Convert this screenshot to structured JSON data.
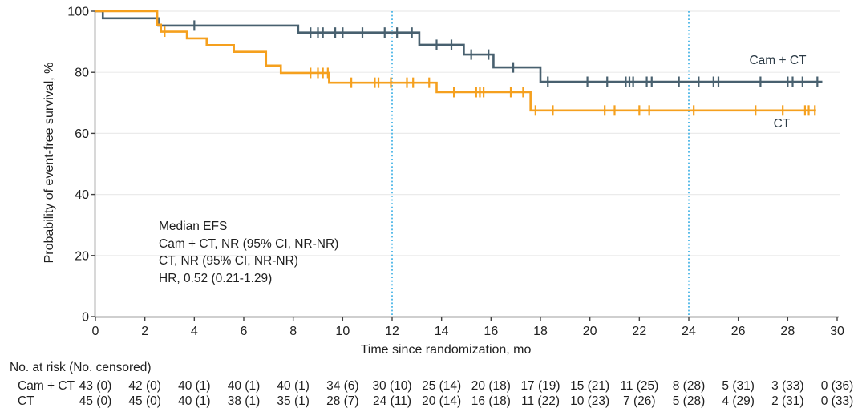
{
  "annotation": {
    "lines": [
      "Median EFS",
      "Cam + CT, NR (95% CI, NR-NR)",
      "CT, NR (95% CI, NR-NR)",
      "HR, 0.52 (0.21-1.29)"
    ]
  },
  "chart_data": {
    "type": "line",
    "subtype": "kaplan-meier-step",
    "xlabel": "Time since randomization, mo",
    "ylabel": "Probability of event-free survival, %",
    "xlim": [
      0,
      30
    ],
    "ylim": [
      0,
      100
    ],
    "x_ticks": [
      0,
      2,
      4,
      6,
      8,
      10,
      12,
      14,
      16,
      18,
      20,
      22,
      24,
      26,
      28,
      30
    ],
    "y_ticks": [
      0,
      20,
      40,
      60,
      80,
      100
    ],
    "grid": "horizontal",
    "colors": {
      "grid": "#ebebeb",
      "axis": "#404040",
      "reference_line": "#3fb1e5",
      "text": "#1f1f1f"
    },
    "reference_lines_x": [
      12,
      24
    ],
    "series": [
      {
        "name": "Cam + CT",
        "color": "#48606f",
        "end_time": 29.4,
        "steps": [
          [
            0,
            100
          ],
          [
            0.3,
            97.7
          ],
          [
            2.55,
            95.3
          ],
          [
            8.2,
            93.0
          ],
          [
            13.1,
            89.0
          ],
          [
            14.9,
            85.8
          ],
          [
            16.1,
            81.6
          ],
          [
            18.0,
            76.9
          ]
        ],
        "censor_marks": [
          [
            4.0,
            95.3
          ],
          [
            8.7,
            93.0
          ],
          [
            9.0,
            93.0
          ],
          [
            9.2,
            93.0
          ],
          [
            9.7,
            93.0
          ],
          [
            10.0,
            93.0
          ],
          [
            10.8,
            93.0
          ],
          [
            11.7,
            93.0
          ],
          [
            12.2,
            93.0
          ],
          [
            12.8,
            93.0
          ],
          [
            13.8,
            89.0
          ],
          [
            14.4,
            89.0
          ],
          [
            15.2,
            85.8
          ],
          [
            15.9,
            85.8
          ],
          [
            16.9,
            81.6
          ],
          [
            18.3,
            76.9
          ],
          [
            19.9,
            76.9
          ],
          [
            20.7,
            76.9
          ],
          [
            21.45,
            76.9
          ],
          [
            21.6,
            76.9
          ],
          [
            21.75,
            76.9
          ],
          [
            22.3,
            76.9
          ],
          [
            22.5,
            76.9
          ],
          [
            23.6,
            76.9
          ],
          [
            24.4,
            76.9
          ],
          [
            25.0,
            76.9
          ],
          [
            25.2,
            76.9
          ],
          [
            26.9,
            76.9
          ],
          [
            28.0,
            76.9
          ],
          [
            28.2,
            76.9
          ],
          [
            28.6,
            76.9
          ],
          [
            29.2,
            76.9
          ]
        ]
      },
      {
        "name": "CT",
        "color": "#f5a01e",
        "end_time": 29.15,
        "steps": [
          [
            0,
            100
          ],
          [
            2.5,
            95.6
          ],
          [
            2.65,
            93.3
          ],
          [
            3.7,
            91.1
          ],
          [
            4.5,
            88.9
          ],
          [
            5.6,
            86.7
          ],
          [
            6.9,
            82.2
          ],
          [
            7.5,
            79.8
          ],
          [
            9.45,
            76.6
          ],
          [
            13.8,
            73.5
          ],
          [
            17.6,
            67.5
          ]
        ],
        "censor_marks": [
          [
            2.8,
            93.3
          ],
          [
            8.7,
            79.8
          ],
          [
            9.0,
            79.8
          ],
          [
            9.2,
            79.8
          ],
          [
            9.4,
            79.8
          ],
          [
            10.35,
            76.6
          ],
          [
            11.3,
            76.6
          ],
          [
            11.45,
            76.6
          ],
          [
            11.95,
            76.6
          ],
          [
            12.6,
            76.6
          ],
          [
            12.85,
            76.6
          ],
          [
            13.5,
            76.6
          ],
          [
            14.5,
            73.5
          ],
          [
            15.4,
            73.5
          ],
          [
            15.55,
            73.5
          ],
          [
            15.7,
            73.5
          ],
          [
            16.8,
            73.5
          ],
          [
            17.3,
            73.5
          ],
          [
            17.8,
            67.5
          ],
          [
            18.5,
            67.5
          ],
          [
            20.6,
            67.5
          ],
          [
            21.0,
            67.5
          ],
          [
            22.0,
            67.5
          ],
          [
            22.4,
            67.5
          ],
          [
            24.2,
            67.5
          ],
          [
            26.7,
            67.5
          ],
          [
            27.8,
            67.5
          ],
          [
            28.7,
            67.5
          ],
          [
            28.85,
            67.5
          ],
          [
            29.1,
            67.5
          ]
        ]
      }
    ]
  },
  "risk_table": {
    "title": "No. at risk (No. censored)",
    "times": [
      0,
      2,
      4,
      6,
      8,
      10,
      12,
      14,
      16,
      18,
      20,
      22,
      24,
      26,
      28,
      30
    ],
    "rows": [
      {
        "label": "Cam + CT",
        "values": [
          "43 (0)",
          "42 (0)",
          "40 (1)",
          "40 (1)",
          "40 (1)",
          "34 (6)",
          "30 (10)",
          "25 (14)",
          "20 (18)",
          "17 (19)",
          "15 (21)",
          "11 (25)",
          "8 (28)",
          "5 (31)",
          "3 (33)",
          "0 (36)"
        ]
      },
      {
        "label": "CT",
        "values": [
          "45 (0)",
          "45 (0)",
          "40 (1)",
          "38 (1)",
          "35 (1)",
          "28 (7)",
          "24 (11)",
          "20 (14)",
          "16 (18)",
          "11 (22)",
          "10 (23)",
          "7 (26)",
          "5 (28)",
          "4 (29)",
          "2 (31)",
          "0 (33)"
        ]
      }
    ]
  }
}
